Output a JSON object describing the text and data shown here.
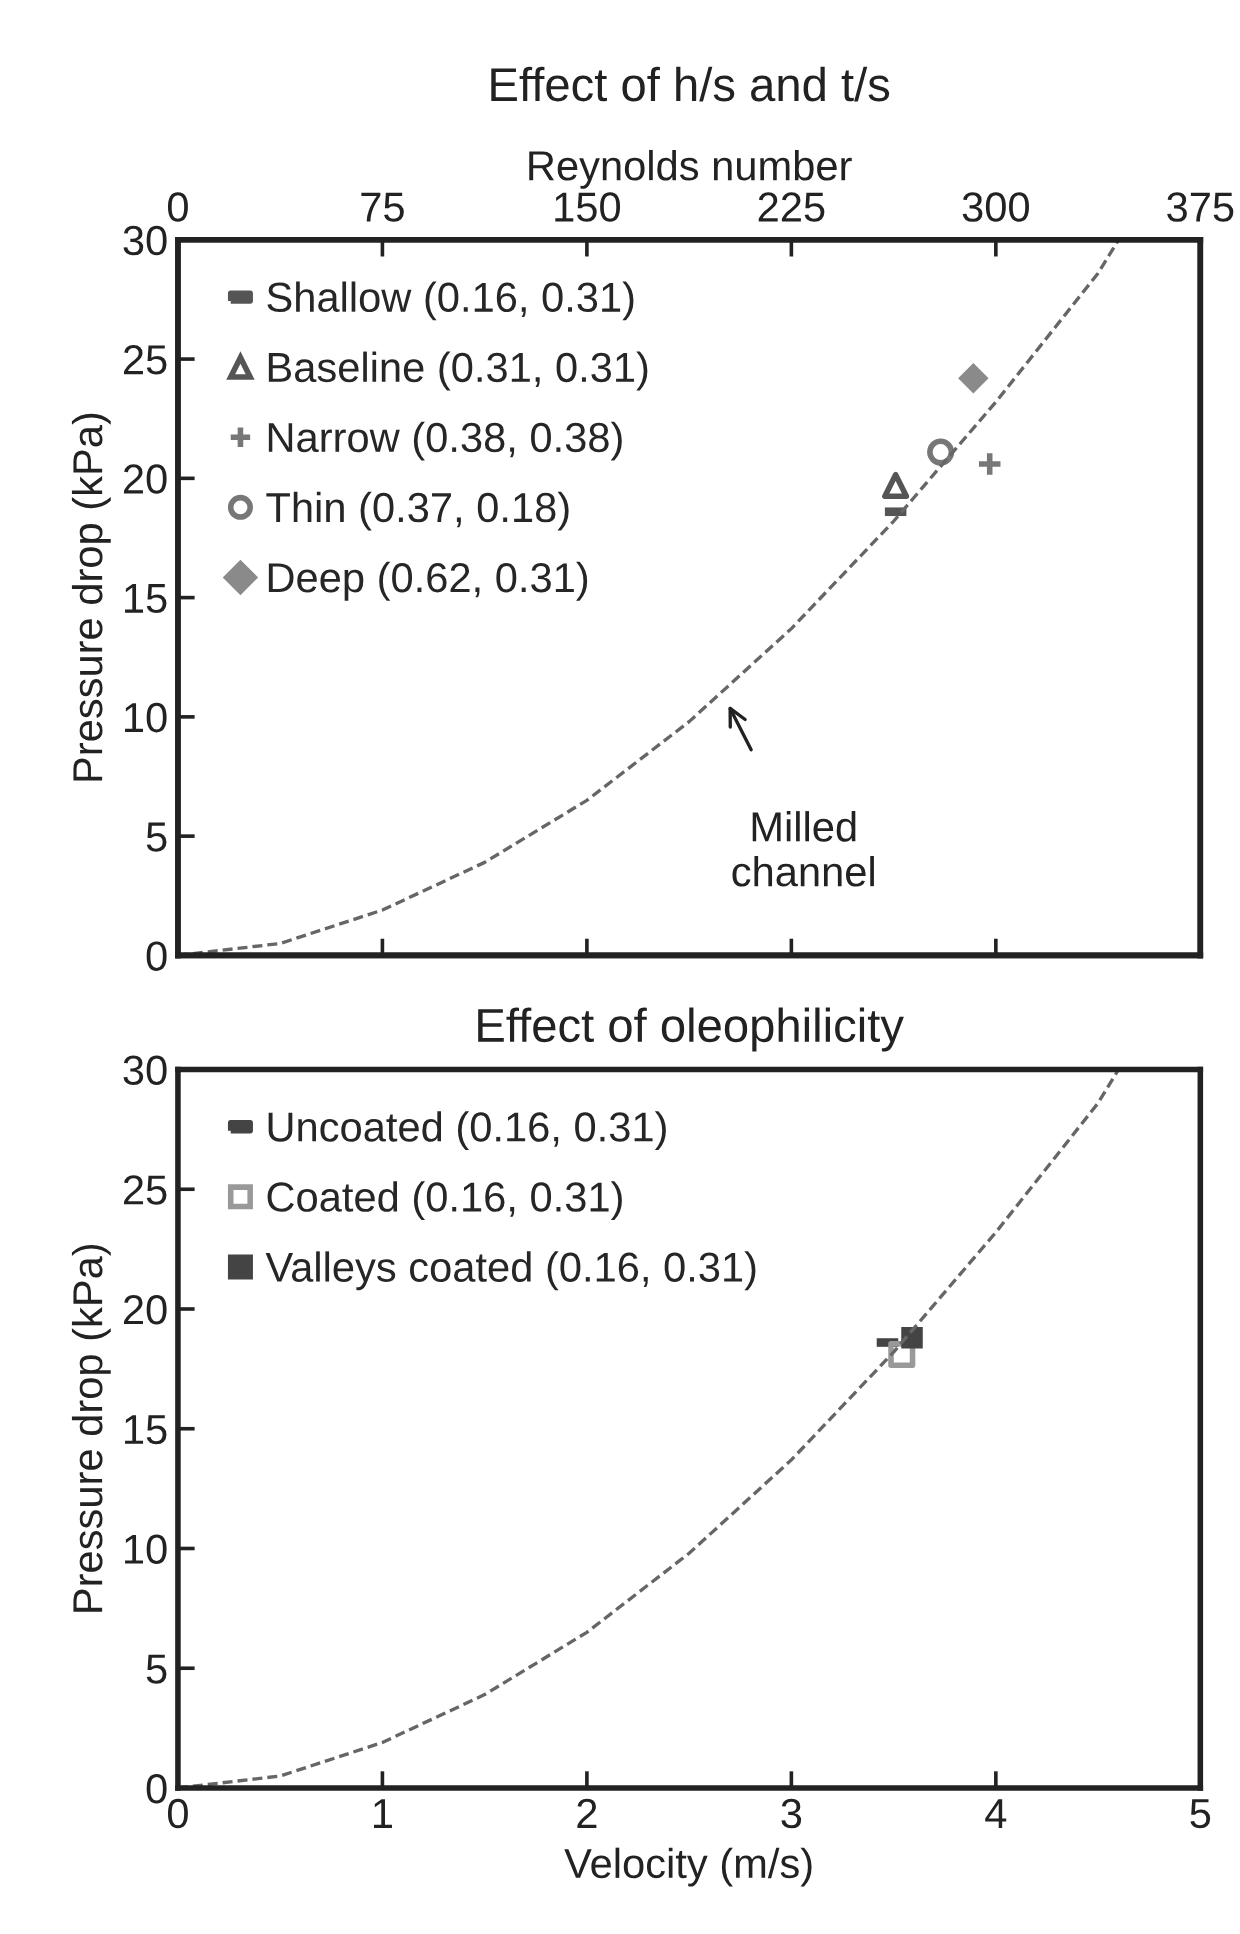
{
  "chart_data": [
    {
      "type": "scatter",
      "title": "Effect of h/s and t/s",
      "ylabel": "Pressure drop (kPa)",
      "x2label": "Reynolds number",
      "xlim": [
        0,
        5
      ],
      "xticks": [
        {
          "value": 0,
          "label": null
        },
        {
          "value": 1,
          "label": null
        },
        {
          "value": 2,
          "label": null
        },
        {
          "value": 3,
          "label": null
        },
        {
          "value": 4,
          "label": null
        },
        {
          "value": 5,
          "label": null
        }
      ],
      "x2lim": [
        0,
        375
      ],
      "x2ticks": [
        0,
        75,
        150,
        225,
        300,
        375
      ],
      "ylim": [
        0,
        30
      ],
      "yticks": [
        0,
        5,
        10,
        15,
        20,
        25,
        30
      ],
      "tick_labels": "y",
      "grid": false,
      "legend": "top left",
      "series": [
        {
          "name": "Shallow (0.16, 0.31)",
          "color": "#555555",
          "x": [
            3.51
          ],
          "values": [
            18.6
          ]
        },
        {
          "name": "Baseline (0.31, 0.31)",
          "color": "#555555",
          "marker": "triangle-open",
          "x": [
            3.51
          ],
          "values": [
            19.7
          ]
        },
        {
          "name": "Narrow (0.38, 0.38)",
          "color": "#777777",
          "marker": "cross",
          "x": [
            3.97
          ],
          "values": [
            20.6
          ]
        },
        {
          "name": "Thin (0.37, 0.18)",
          "color": "#777777",
          "marker": "circle-open",
          "x": [
            3.73
          ],
          "values": [
            21.1
          ]
        },
        {
          "name": "Deep (0.62, 0.31)",
          "color": "#8a8a8a",
          "marker": "diamond",
          "x": [
            3.89
          ],
          "values": [
            24.2
          ]
        },
        {
          "type": "line",
          "color": "#666666",
          "line_style": "dashed",
          "marker": "none",
          "x": [
            0,
            0.5,
            1,
            1.5,
            2,
            2.5,
            3,
            3.5,
            4,
            4.5,
            4.6
          ],
          "values": [
            0,
            0.5,
            1.9,
            3.9,
            6.5,
            9.8,
            13.7,
            18.2,
            23.2,
            28.6,
            30
          ]
        }
      ],
      "annotations": [
        {
          "text": "Milled\nchannel",
          "x": 2.68,
          "y": 10.7
        }
      ]
    },
    {
      "type": "scatter",
      "title": "Effect of oleophilicity",
      "xlabel": "Velocity (m/s)",
      "ylabel": "Pressure drop (kPa)",
      "xlim": [
        0,
        5
      ],
      "xticks": [
        0,
        1,
        2,
        3,
        4,
        5
      ],
      "ylim": [
        0,
        30
      ],
      "yticks": [
        0,
        5,
        10,
        15,
        20,
        25,
        30
      ],
      "grid": false,
      "legend": "top left",
      "series": [
        {
          "name": "Uncoated (0.16, 0.31)",
          "color": "#444444",
          "x": [
            3.47
          ],
          "values": [
            18.6
          ]
        },
        {
          "name": "Coated (0.16, 0.31)",
          "color": "#999999",
          "marker": "square-open",
          "x": [
            3.54
          ],
          "values": [
            18.1
          ]
        },
        {
          "name": "Valleys coated (0.16, 0.31)",
          "color": "#444444",
          "marker": "square",
          "x": [
            3.59
          ],
          "values": [
            18.8
          ]
        },
        {
          "type": "line",
          "color": "#666666",
          "line_style": "dashed",
          "marker": "none",
          "x": [
            0,
            0.5,
            1,
            1.5,
            2,
            2.5,
            3,
            3.5,
            4,
            4.5,
            4.6
          ],
          "values": [
            0,
            0.5,
            1.9,
            3.9,
            6.5,
            9.8,
            13.7,
            18.2,
            23.2,
            28.6,
            30
          ]
        }
      ]
    }
  ]
}
